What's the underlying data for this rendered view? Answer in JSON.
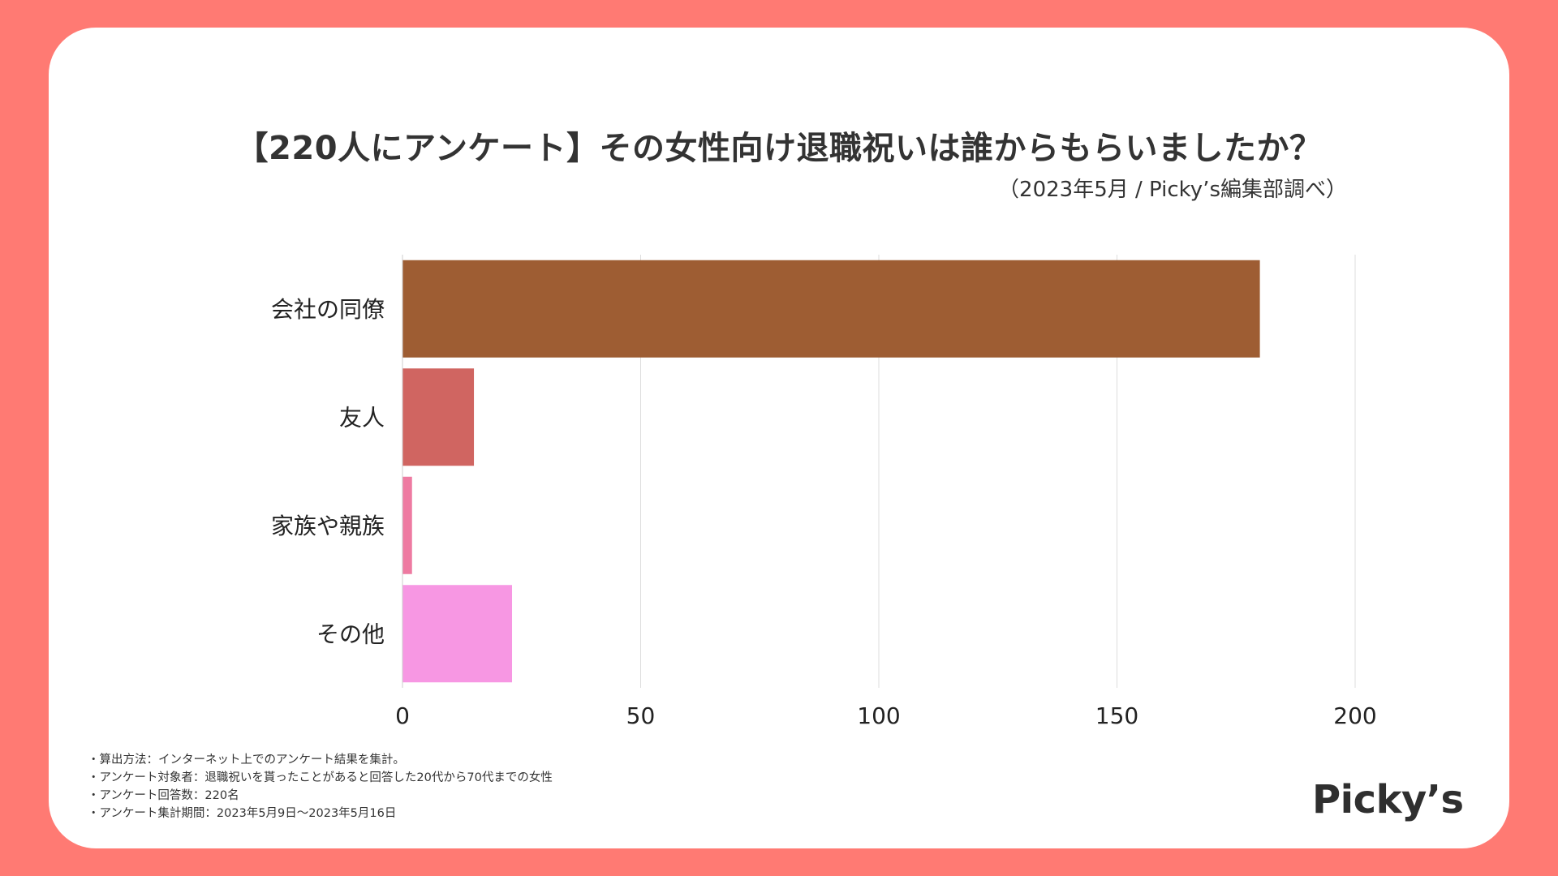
{
  "header": {
    "title": "【220人にアンケート】その女性向け退職祝いは誰からもらいましたか？",
    "subtitle": "（2023年5月 / Picky’s編集部調べ）"
  },
  "colors": {
    "background": "#ff7a73",
    "card": "#ffffff",
    "bar_colors": [
      "#9e5d33",
      "#d06561",
      "#ee7aa1",
      "#f797e3"
    ],
    "grid": "#dddddd",
    "text": "#333333"
  },
  "chart_data": {
    "type": "bar",
    "orientation": "horizontal",
    "title": "【220人にアンケート】その女性向け退職祝いは誰からもらいましたか？",
    "subtitle": "（2023年5月 / Picky’s編集部調べ）",
    "categories": [
      "会社の同僚",
      "友人",
      "家族や親族",
      "その他"
    ],
    "values": [
      180,
      15,
      2,
      23
    ],
    "xlim": [
      0,
      200
    ],
    "xticks": [
      0,
      50,
      100,
      150,
      200
    ],
    "xlabel": "",
    "ylabel": "",
    "grid": true
  },
  "notes": [
    "・算出方法：インターネット上でのアンケート結果を集計。",
    "・アンケート対象者：退職祝いを貰ったことがあると回答した20代から70代までの女性",
    "・アンケート回答数：220名",
    "・アンケート集計期間：2023年5月9日〜2023年5月16日"
  ],
  "logo": {
    "text": "Picky’s"
  }
}
